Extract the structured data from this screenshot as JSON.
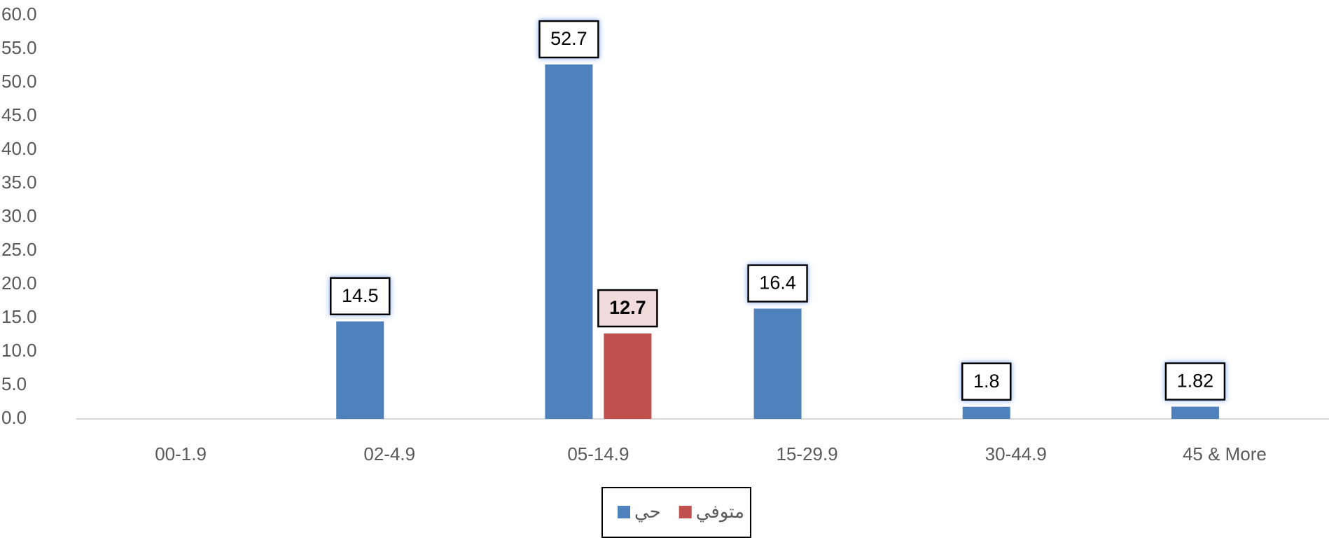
{
  "chart_data": {
    "type": "bar",
    "categories": [
      "00-1.9",
      "02-4.9",
      "05-14.9",
      "15-29.9",
      "30-44.9",
      "45 & More"
    ],
    "series": [
      {
        "name": "حي",
        "color": "#4f81bd",
        "values": [
          null,
          14.5,
          52.7,
          16.4,
          1.8,
          1.82
        ]
      },
      {
        "name": "متوفي",
        "color": "#c0504d",
        "values": [
          null,
          null,
          12.7,
          null,
          null,
          null
        ]
      }
    ],
    "ylim": [
      0,
      60
    ],
    "yticks": [
      {
        "value": 0,
        "label": "0.0"
      },
      {
        "value": 5,
        "label": "5.0"
      },
      {
        "value": 10,
        "label": "10.0"
      },
      {
        "value": 15,
        "label": "15.0"
      },
      {
        "value": 20,
        "label": "20.0"
      },
      {
        "value": 25,
        "label": "25.0"
      },
      {
        "value": 30,
        "label": "30.0"
      },
      {
        "value": 35,
        "label": "35.0"
      },
      {
        "value": 40,
        "label": "40.0"
      },
      {
        "value": 45,
        "label": "45.0"
      },
      {
        "value": 50,
        "label": "50.0"
      },
      {
        "value": 55,
        "label": "55.0"
      },
      {
        "value": 60,
        "label": "60.0"
      }
    ],
    "grid": false,
    "legend": "bottom"
  }
}
